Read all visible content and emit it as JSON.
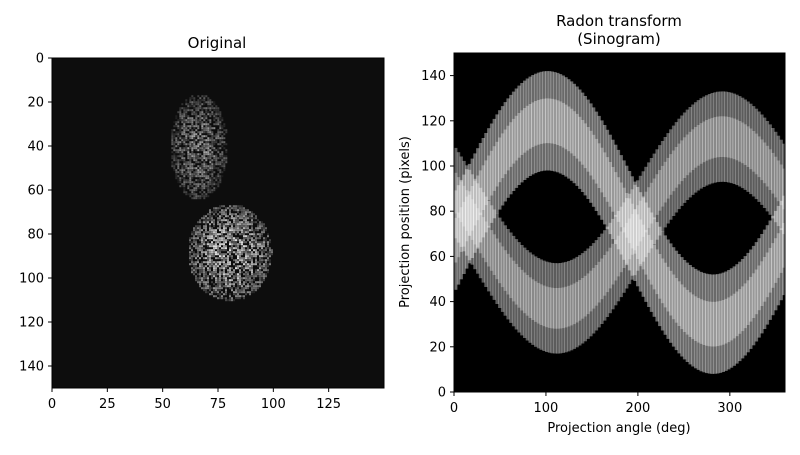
{
  "chart_data": [
    {
      "type": "heatmap",
      "title": "Original",
      "xlabel": "",
      "ylabel": "",
      "xlim": [
        0,
        150
      ],
      "ylim": [
        150,
        0
      ],
      "xticks": [
        "0",
        "25",
        "50",
        "75",
        "100",
        "125"
      ],
      "xtick_values": [
        0,
        25,
        50,
        75,
        100,
        125
      ],
      "yticks": [
        "0",
        "20",
        "40",
        "60",
        "80",
        "100",
        "120",
        "140"
      ],
      "ytick_values": [
        0,
        20,
        40,
        60,
        80,
        100,
        120,
        140
      ],
      "colormap": "gray",
      "background_color": "#0d0d0d",
      "blobs": [
        {
          "cx": 66,
          "cy": 40,
          "rx": 13,
          "ry": 24,
          "intensity": 0.55
        },
        {
          "cx": 80,
          "cy": 88,
          "rx": 19,
          "ry": 22,
          "intensity": 0.75
        }
      ]
    },
    {
      "type": "heatmap",
      "title": "Radon transform",
      "subtitle": "(Sinogram)",
      "xlabel": "Projection angle (deg)",
      "ylabel": "Projection position (pixels)",
      "xlim": [
        0,
        360
      ],
      "ylim": [
        0,
        150
      ],
      "xticks": [
        "0",
        "100",
        "200",
        "300"
      ],
      "xtick_values": [
        0,
        100,
        200,
        300
      ],
      "yticks": [
        "0",
        "20",
        "40",
        "60",
        "80",
        "100",
        "120",
        "140"
      ],
      "ytick_values": [
        0,
        20,
        40,
        60,
        80,
        100,
        120,
        140
      ],
      "colormap": "gray",
      "background_color": "#000000",
      "bands": [
        {
          "phase_deg": 10,
          "amplitude": 45,
          "center": 75,
          "halfwidth": 22,
          "intensity": 0.9
        },
        {
          "phase_deg": 200,
          "amplitude": 38,
          "center": 75,
          "halfwidth": 20,
          "intensity": 0.8
        }
      ]
    }
  ]
}
